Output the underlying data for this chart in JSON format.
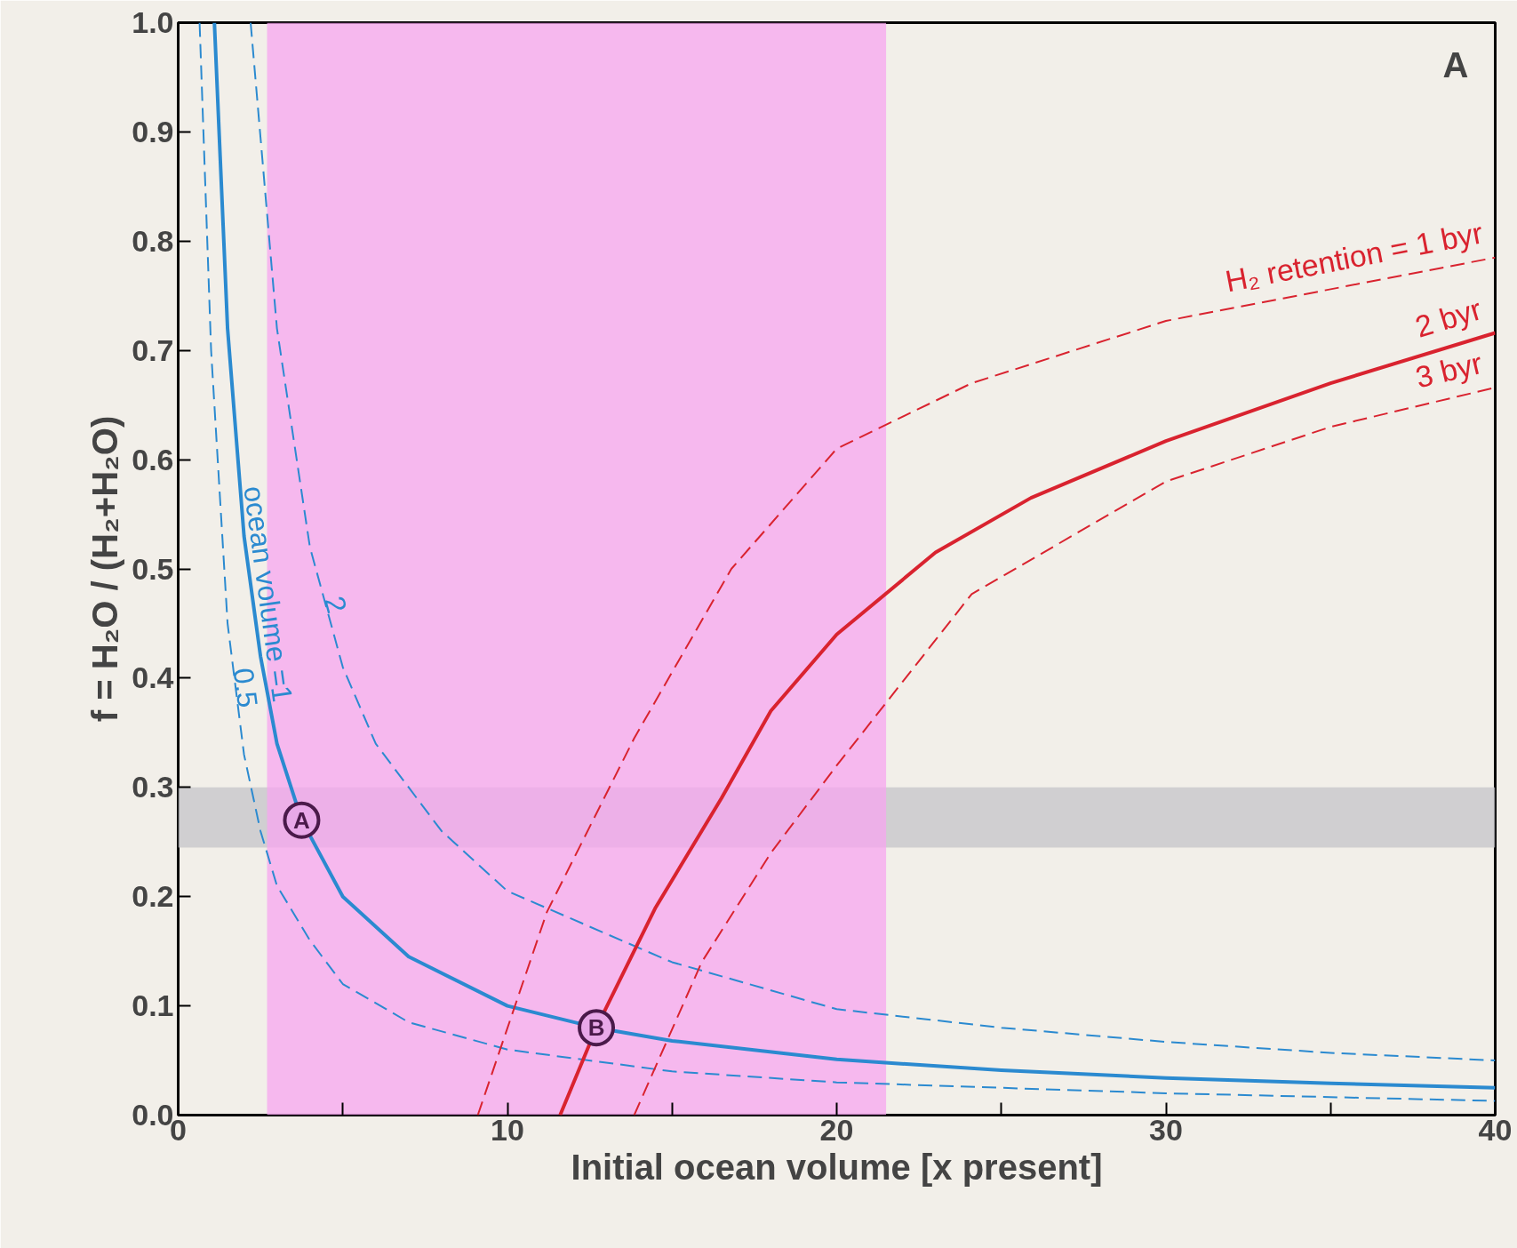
{
  "chart_data": {
    "type": "line",
    "xlabel": "Initial ocean volume [x present]",
    "ylabel": "f = H₂O / (H₂+H₂O)",
    "xlim": [
      0,
      40
    ],
    "ylim": [
      0,
      1.0
    ],
    "xticks": [
      0,
      {
        "value": 5,
        "label": null
      },
      10,
      {
        "value": 15,
        "label": null
      },
      20,
      {
        "value": 25,
        "label": null
      },
      30,
      {
        "value": 35,
        "label": null
      },
      40
    ],
    "yticks": [
      "0.0",
      0.1,
      0.2,
      0.3,
      0.4,
      0.5,
      0.6,
      0.7,
      0.8,
      0.9,
      "1.0"
    ],
    "series": [
      {
        "name": "ocean volume =1",
        "color": "#2b8ad0",
        "line_style": "solid",
        "x": [
          1.1,
          1.5,
          2,
          2.5,
          3,
          3.75,
          5,
          7,
          10,
          12.7,
          15,
          20,
          25,
          30,
          35,
          40
        ],
        "values": [
          1.0,
          0.72,
          0.53,
          0.42,
          0.34,
          0.27,
          0.2,
          0.145,
          0.1,
          0.08,
          0.068,
          0.051,
          0.041,
          0.034,
          0.029,
          0.025
        ]
      },
      {
        "name": "2",
        "color": "#2b8ad0",
        "line_style": "dashed",
        "x": [
          2.2,
          3,
          4,
          5,
          6,
          8,
          10,
          15,
          20,
          25,
          30,
          35,
          40
        ],
        "values": [
          1.0,
          0.72,
          0.52,
          0.41,
          0.34,
          0.26,
          0.205,
          0.14,
          0.097,
          0.08,
          0.067,
          0.057,
          0.05
        ]
      },
      {
        "name": "0.5",
        "color": "#2b8ad0",
        "line_style": "dashed",
        "x": [
          0.65,
          1,
          1.5,
          2,
          2.5,
          3,
          4,
          5,
          7,
          10,
          15,
          20,
          30,
          40
        ],
        "values": [
          1.0,
          0.7,
          0.45,
          0.33,
          0.26,
          0.21,
          0.16,
          0.12,
          0.085,
          0.06,
          0.04,
          0.03,
          0.02,
          0.013
        ]
      },
      {
        "name": "H₂ retention = 1 byr",
        "color": "#d9232f",
        "line_style": "dashed",
        "x": [
          9.1,
          11.2,
          13.85,
          16.8,
          20,
          24.1,
          30,
          40
        ],
        "values": [
          0,
          0.186,
          0.345,
          0.5,
          0.61,
          0.67,
          0.727,
          0.785
        ]
      },
      {
        "name": "2 byr",
        "color": "#d9232f",
        "line_style": "solid",
        "x": [
          11.6,
          12.7,
          14.5,
          16.5,
          18,
          20,
          23,
          25.9,
          30,
          35,
          40
        ],
        "values": [
          0,
          0.08,
          0.19,
          0.29,
          0.37,
          0.44,
          0.515,
          0.565,
          0.617,
          0.67,
          0.716
        ]
      },
      {
        "name": "3 byr",
        "color": "#d9232f",
        "line_style": "dashed",
        "x": [
          13.85,
          15.9,
          18,
          20,
          24.1,
          30,
          35,
          40
        ],
        "values": [
          0,
          0.14,
          0.24,
          0.32,
          0.477,
          0.58,
          0.63,
          0.666
        ]
      }
    ],
    "bands": [
      {
        "axis": "y",
        "from": 0.245,
        "to": 0.3,
        "color": "#c4c4c8"
      },
      {
        "axis": "x",
        "from": 2.7,
        "to": 21.5,
        "color": "#f7a6ef"
      }
    ],
    "annotations": [
      {
        "text": "A",
        "x": 3.75,
        "y": 0.27
      },
      {
        "text": "B",
        "x": 12.7,
        "y": 0.08
      },
      "A"
    ]
  }
}
